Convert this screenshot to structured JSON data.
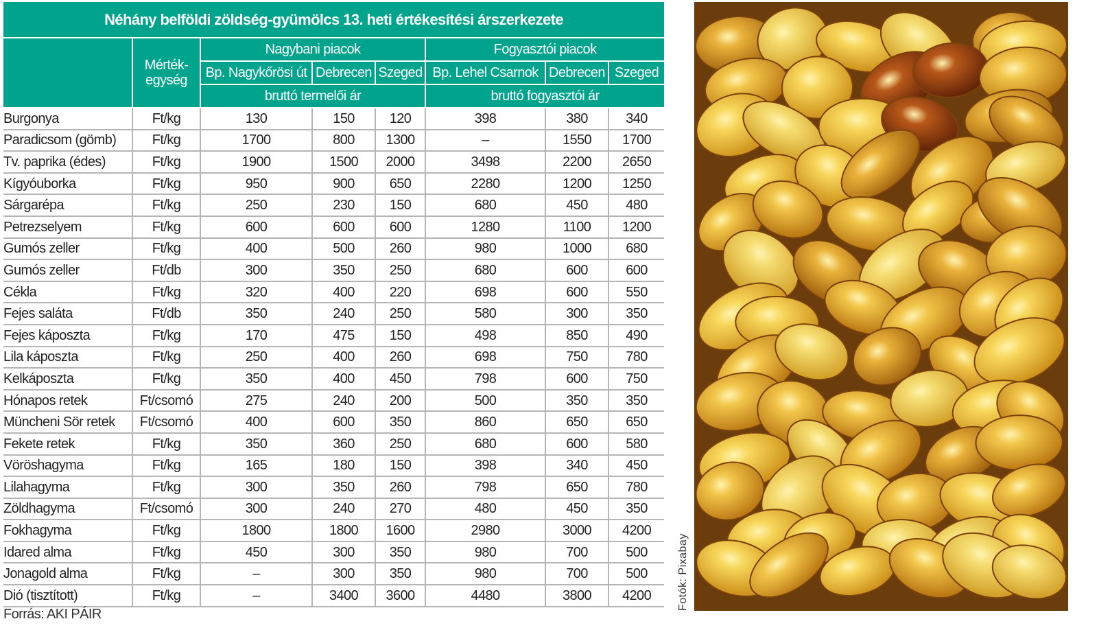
{
  "title": "Néhány belföldi zöldség-gyümölcs 13. heti értékesítési árszerkezete",
  "headers": {
    "unit": "Mérték-egység",
    "group_wholesale": "Nagybani piacok",
    "group_consumer": "Fogyasztói piacok",
    "columns": [
      "Bp. Nagykőrösi út",
      "Debrecen",
      "Szeged",
      "Bp. Lehel Csarnok",
      "Debrecen",
      "Szeged"
    ],
    "price_wholesale": "bruttó termelői ár",
    "price_consumer": "bruttó fogyasztói ár"
  },
  "rows": [
    {
      "name": "Burgonya",
      "unit": "Ft/kg",
      "values": [
        "130",
        "150",
        "120",
        "398",
        "380",
        "340"
      ]
    },
    {
      "name": "Paradicsom (gömb)",
      "unit": "Ft/kg",
      "values": [
        "1700",
        "800",
        "1300",
        "–",
        "1550",
        "1700"
      ]
    },
    {
      "name": "Tv. paprika (édes)",
      "unit": "Ft/kg",
      "values": [
        "1900",
        "1500",
        "2000",
        "3498",
        "2200",
        "2650"
      ]
    },
    {
      "name": "Kígyóuborka",
      "unit": "Ft/kg",
      "values": [
        "950",
        "900",
        "650",
        "2280",
        "1200",
        "1250"
      ]
    },
    {
      "name": "Sárgarépa",
      "unit": "Ft/kg",
      "values": [
        "250",
        "230",
        "150",
        "680",
        "450",
        "480"
      ]
    },
    {
      "name": "Petrezselyem",
      "unit": "Ft/kg",
      "values": [
        "600",
        "600",
        "600",
        "1280",
        "1100",
        "1200"
      ]
    },
    {
      "name": "Gumós zeller",
      "unit": "Ft/kg",
      "values": [
        "400",
        "500",
        "260",
        "980",
        "1000",
        "680"
      ]
    },
    {
      "name": "Gumós zeller",
      "unit": "Ft/db",
      "values": [
        "300",
        "350",
        "250",
        "680",
        "600",
        "600"
      ]
    },
    {
      "name": "Cékla",
      "unit": "Ft/kg",
      "values": [
        "320",
        "400",
        "220",
        "698",
        "600",
        "550"
      ]
    },
    {
      "name": "Fejes saláta",
      "unit": "Ft/db",
      "values": [
        "350",
        "240",
        "250",
        "580",
        "300",
        "350"
      ]
    },
    {
      "name": "Fejes káposzta",
      "unit": "Ft/kg",
      "values": [
        "170",
        "475",
        "150",
        "498",
        "850",
        "490"
      ]
    },
    {
      "name": "Lila káposzta",
      "unit": "Ft/kg",
      "values": [
        "250",
        "400",
        "260",
        "698",
        "750",
        "780"
      ]
    },
    {
      "name": "Kelkáposzta",
      "unit": "Ft/kg",
      "values": [
        "350",
        "400",
        "450",
        "798",
        "600",
        "750"
      ]
    },
    {
      "name": "Hónapos retek",
      "unit": "Ft/csomó",
      "values": [
        "275",
        "240",
        "200",
        "500",
        "350",
        "350"
      ]
    },
    {
      "name": "Müncheni Sör retek",
      "unit": "Ft/csomó",
      "values": [
        "400",
        "600",
        "350",
        "860",
        "650",
        "650"
      ]
    },
    {
      "name": "Fekete retek",
      "unit": "Ft/kg",
      "values": [
        "350",
        "360",
        "250",
        "680",
        "600",
        "580"
      ]
    },
    {
      "name": "Vöröshagyma",
      "unit": "Ft/kg",
      "values": [
        "165",
        "180",
        "150",
        "398",
        "340",
        "450"
      ]
    },
    {
      "name": "Lilahagyma",
      "unit": "Ft/kg",
      "values": [
        "300",
        "350",
        "260",
        "798",
        "650",
        "780"
      ]
    },
    {
      "name": "Zöldhagyma",
      "unit": "Ft/csomó",
      "values": [
        "300",
        "240",
        "270",
        "480",
        "450",
        "350"
      ]
    },
    {
      "name": "Fokhagyma",
      "unit": "Ft/kg",
      "values": [
        "1800",
        "1800",
        "1600",
        "2980",
        "3000",
        "4200"
      ]
    },
    {
      "name": "Idared alma",
      "unit": "Ft/kg",
      "values": [
        "450",
        "300",
        "350",
        "980",
        "700",
        "500"
      ]
    },
    {
      "name": "Jonagold alma",
      "unit": "Ft/kg",
      "values": [
        "–",
        "300",
        "350",
        "980",
        "700",
        "500"
      ]
    },
    {
      "name": "Dió (tisztított)",
      "unit": "Ft/kg",
      "values": [
        "–",
        "3400",
        "3600",
        "4480",
        "3800",
        "4200"
      ]
    }
  ],
  "source": "Forrás: AKI PÁIR",
  "photo_credit": "Fotók: Pixabay",
  "colors": {
    "header_bg": "#00a48d",
    "grid": "#b5b5b5"
  }
}
